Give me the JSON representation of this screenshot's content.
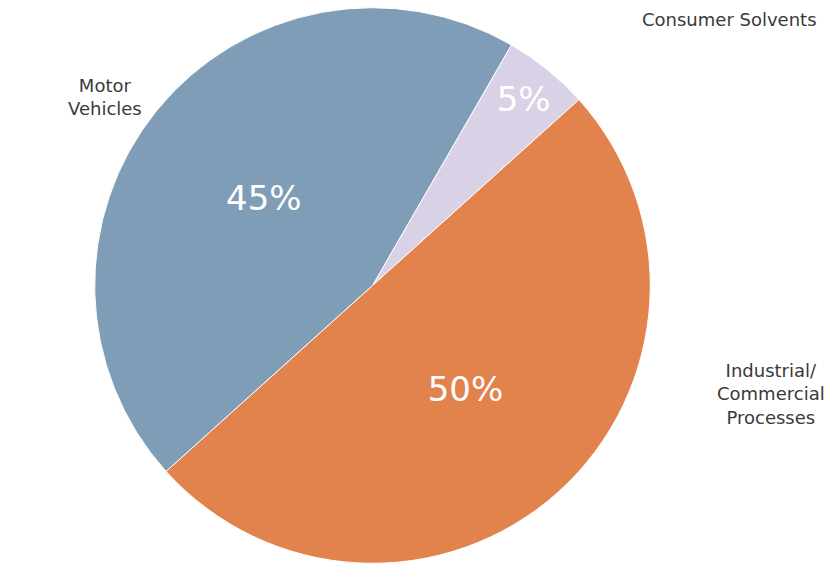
{
  "chart_data": {
    "type": "pie",
    "categories": [
      "Consumer Solvents",
      "Industrial/Commercial Processes",
      "Motor Vehicles"
    ],
    "values": [
      5,
      50,
      45
    ],
    "value_labels": [
      "5%",
      "50%",
      "45%"
    ],
    "colors": [
      "#d9d2e6",
      "#e2834d",
      "#7f9db6"
    ],
    "data_labels": true
  }
}
